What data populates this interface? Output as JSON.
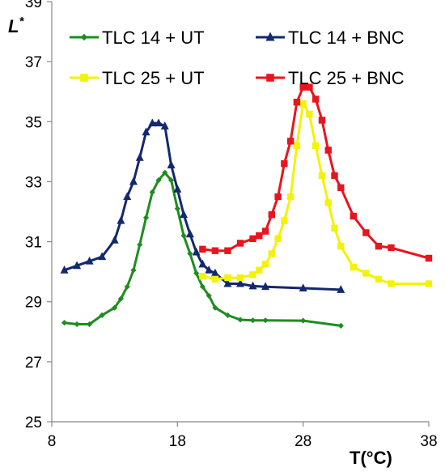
{
  "chart_data": {
    "type": "line",
    "title": "",
    "xlabel": "T(°C)",
    "ylabel": "L",
    "ylabel_superscript": "*",
    "xlim": [
      8,
      38
    ],
    "ylim": [
      25,
      39
    ],
    "xticks": [
      8,
      18,
      28,
      38
    ],
    "yticks": [
      25,
      27,
      29,
      31,
      33,
      35,
      37,
      39
    ],
    "grid": false,
    "legend_position": "top",
    "series": [
      {
        "name": "TLC 14 + UT",
        "color": "#1e8c1e",
        "marker": "diamond",
        "x": [
          9,
          10,
          11,
          12,
          13,
          13.5,
          14,
          14.5,
          15,
          15.5,
          16,
          16.5,
          17,
          17.5,
          18,
          18.5,
          19,
          19.5,
          20,
          20.5,
          21,
          22,
          23,
          24,
          25,
          28,
          31
        ],
        "y": [
          28.3,
          28.25,
          28.25,
          28.55,
          28.8,
          29.1,
          29.5,
          30.05,
          30.9,
          31.8,
          32.65,
          33.05,
          33.3,
          33.05,
          32.1,
          31.2,
          30.6,
          29.95,
          29.5,
          29.2,
          28.8,
          28.55,
          28.4,
          28.38,
          28.38,
          28.37,
          28.2
        ]
      },
      {
        "name": "TLC 14 + BNC",
        "color": "#14286e",
        "marker": "triangle",
        "x": [
          9,
          10,
          11,
          12,
          13,
          13.5,
          14,
          14.5,
          15,
          15.5,
          16,
          16.5,
          17,
          17.5,
          18,
          18.5,
          19,
          19.5,
          20,
          20.5,
          21,
          22,
          23,
          24,
          25,
          28,
          31
        ],
        "y": [
          30.05,
          30.2,
          30.35,
          30.5,
          31.05,
          31.7,
          32.5,
          33.0,
          33.8,
          34.65,
          34.95,
          34.95,
          34.85,
          33.55,
          32.75,
          31.9,
          31.25,
          30.65,
          30.25,
          30.05,
          29.95,
          29.6,
          29.6,
          29.52,
          29.5,
          29.45,
          29.4
        ]
      },
      {
        "name": "TLC 25 + UT",
        "color": "#f2f20a",
        "marker": "square",
        "x": [
          20,
          21,
          22,
          23,
          24,
          24.5,
          25,
          25.5,
          26,
          26.5,
          27,
          27.5,
          28,
          28.5,
          29,
          29.5,
          30,
          30.5,
          31,
          32,
          33,
          34,
          35,
          38
        ],
        "y": [
          29.85,
          29.75,
          29.8,
          29.8,
          29.9,
          30.05,
          30.25,
          30.6,
          31.1,
          31.7,
          32.5,
          34.2,
          35.6,
          35.25,
          34.2,
          33.2,
          32.3,
          31.45,
          30.85,
          30.15,
          29.95,
          29.75,
          29.6,
          29.6
        ]
      },
      {
        "name": "TLC 25 + BNC",
        "color": "#e8141e",
        "marker": "square",
        "x": [
          20,
          21,
          22,
          23,
          24,
          24.5,
          25,
          25.5,
          26,
          26.5,
          27,
          27.5,
          28,
          28.5,
          29,
          29.5,
          30,
          30.5,
          31,
          32,
          33,
          34,
          35,
          38
        ],
        "y": [
          30.75,
          30.7,
          30.7,
          30.95,
          31.1,
          31.2,
          31.35,
          31.9,
          32.5,
          33.6,
          34.35,
          35.65,
          36.15,
          36.15,
          35.75,
          35.05,
          34.05,
          33.2,
          32.8,
          31.85,
          31.3,
          30.85,
          30.8,
          30.45
        ]
      }
    ]
  }
}
